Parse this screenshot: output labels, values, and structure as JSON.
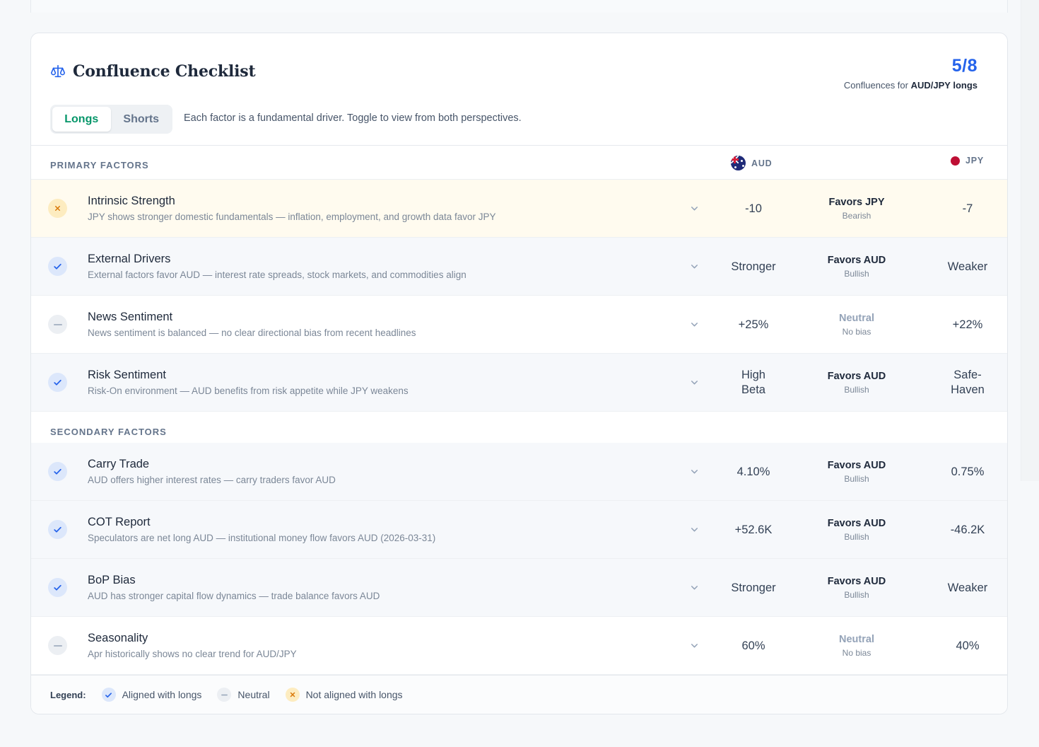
{
  "header": {
    "title": "Confluence Checklist",
    "title_icon": "scale-icon",
    "score": "5/8",
    "score_caption_prefix": "Confluences for",
    "score_caption_pair": "AUD/JPY longs",
    "toggle": {
      "longs": "Longs",
      "shorts": "Shorts",
      "active": "Longs"
    },
    "hint": "Each factor is a fundamental driver. Toggle to view from both perspectives."
  },
  "columns": {
    "base": "AUD",
    "quote": "JPY"
  },
  "primary": {
    "label": "PRIMARY FACTORS",
    "rows": [
      {
        "status": "against",
        "name": "Intrinsic Strength",
        "desc": "JPY shows stronger domestic fundamentals — inflation, employment, and growth data favor JPY",
        "aud": "-10",
        "verdict": "Favors JPY",
        "verdict_sub": "Bearish",
        "jpy": "-7"
      },
      {
        "status": "aligned",
        "name": "External Drivers",
        "desc": "External factors favor AUD — interest rate spreads, stock markets, and commodities align",
        "aud": "Stronger",
        "verdict": "Favors AUD",
        "verdict_sub": "Bullish",
        "jpy": "Weaker"
      },
      {
        "status": "neutral",
        "name": "News Sentiment",
        "desc": "News sentiment is balanced — no clear directional bias from recent headlines",
        "aud": "+25%",
        "verdict": "Neutral",
        "verdict_sub": "No bias",
        "jpy": "+22%"
      },
      {
        "status": "aligned",
        "name": "Risk Sentiment",
        "desc": "Risk-On environment — AUD benefits from risk appetite while JPY weakens",
        "aud": "High\nBeta",
        "verdict": "Favors AUD",
        "verdict_sub": "Bullish",
        "jpy": "Safe-\nHaven"
      }
    ]
  },
  "secondary": {
    "label": "SECONDARY FACTORS",
    "rows": [
      {
        "status": "aligned",
        "name": "Carry Trade",
        "desc": "AUD offers higher interest rates — carry traders favor AUD",
        "aud": "4.10%",
        "verdict": "Favors AUD",
        "verdict_sub": "Bullish",
        "jpy": "0.75%"
      },
      {
        "status": "aligned",
        "name": "COT Report",
        "desc": "Speculators are net long AUD — institutional money flow favors AUD (2026-03-31)",
        "aud": "+52.6K",
        "verdict": "Favors AUD",
        "verdict_sub": "Bullish",
        "jpy": "-46.2K"
      },
      {
        "status": "aligned",
        "name": "BoP Bias",
        "desc": "AUD has stronger capital flow dynamics — trade balance favors AUD",
        "aud": "Stronger",
        "verdict": "Favors AUD",
        "verdict_sub": "Bullish",
        "jpy": "Weaker"
      },
      {
        "status": "neutral",
        "name": "Seasonality",
        "desc": "Apr historically shows no clear trend for AUD/JPY",
        "aud": "60%",
        "verdict": "Neutral",
        "verdict_sub": "No bias",
        "jpy": "40%"
      }
    ]
  },
  "legend": {
    "title": "Legend:",
    "aligned": "Aligned with longs",
    "neutral": "Neutral",
    "against": "Not aligned with longs"
  },
  "colors": {
    "accent": "#2563eb",
    "active_toggle": "#059669",
    "warn_row": "#fffbef",
    "against": "#d97706"
  }
}
